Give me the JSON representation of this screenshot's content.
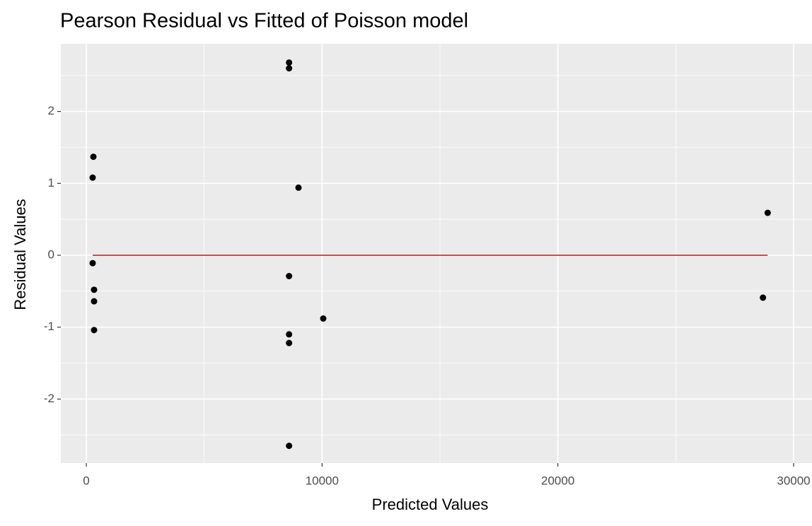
{
  "chart_data": {
    "type": "scatter",
    "title": "Pearson Residual vs Fitted of Poisson model",
    "x_label": "Predicted Values",
    "y_label": "Residual Values",
    "x": [
      300,
      270,
      270,
      330,
      330,
      330,
      8600,
      8600,
      9000,
      8600,
      8600,
      8600,
      10050,
      8600,
      28900,
      28700
    ],
    "y": [
      1.37,
      1.08,
      -0.11,
      -0.48,
      -0.64,
      -1.04,
      2.68,
      2.6,
      0.94,
      -0.29,
      -1.1,
      -1.22,
      -0.88,
      -2.65,
      0.59,
      -0.59
    ],
    "color": "#000000",
    "hline": 0,
    "hline_color": "#e41a1c",
    "xlim": [
      -1080,
      30780
    ],
    "ylim": [
      -2.89,
      2.94
    ],
    "xticks": [
      0,
      10000,
      20000,
      30000
    ],
    "yticks": [
      -2,
      -1,
      0,
      1,
      2
    ],
    "grid": true
  }
}
